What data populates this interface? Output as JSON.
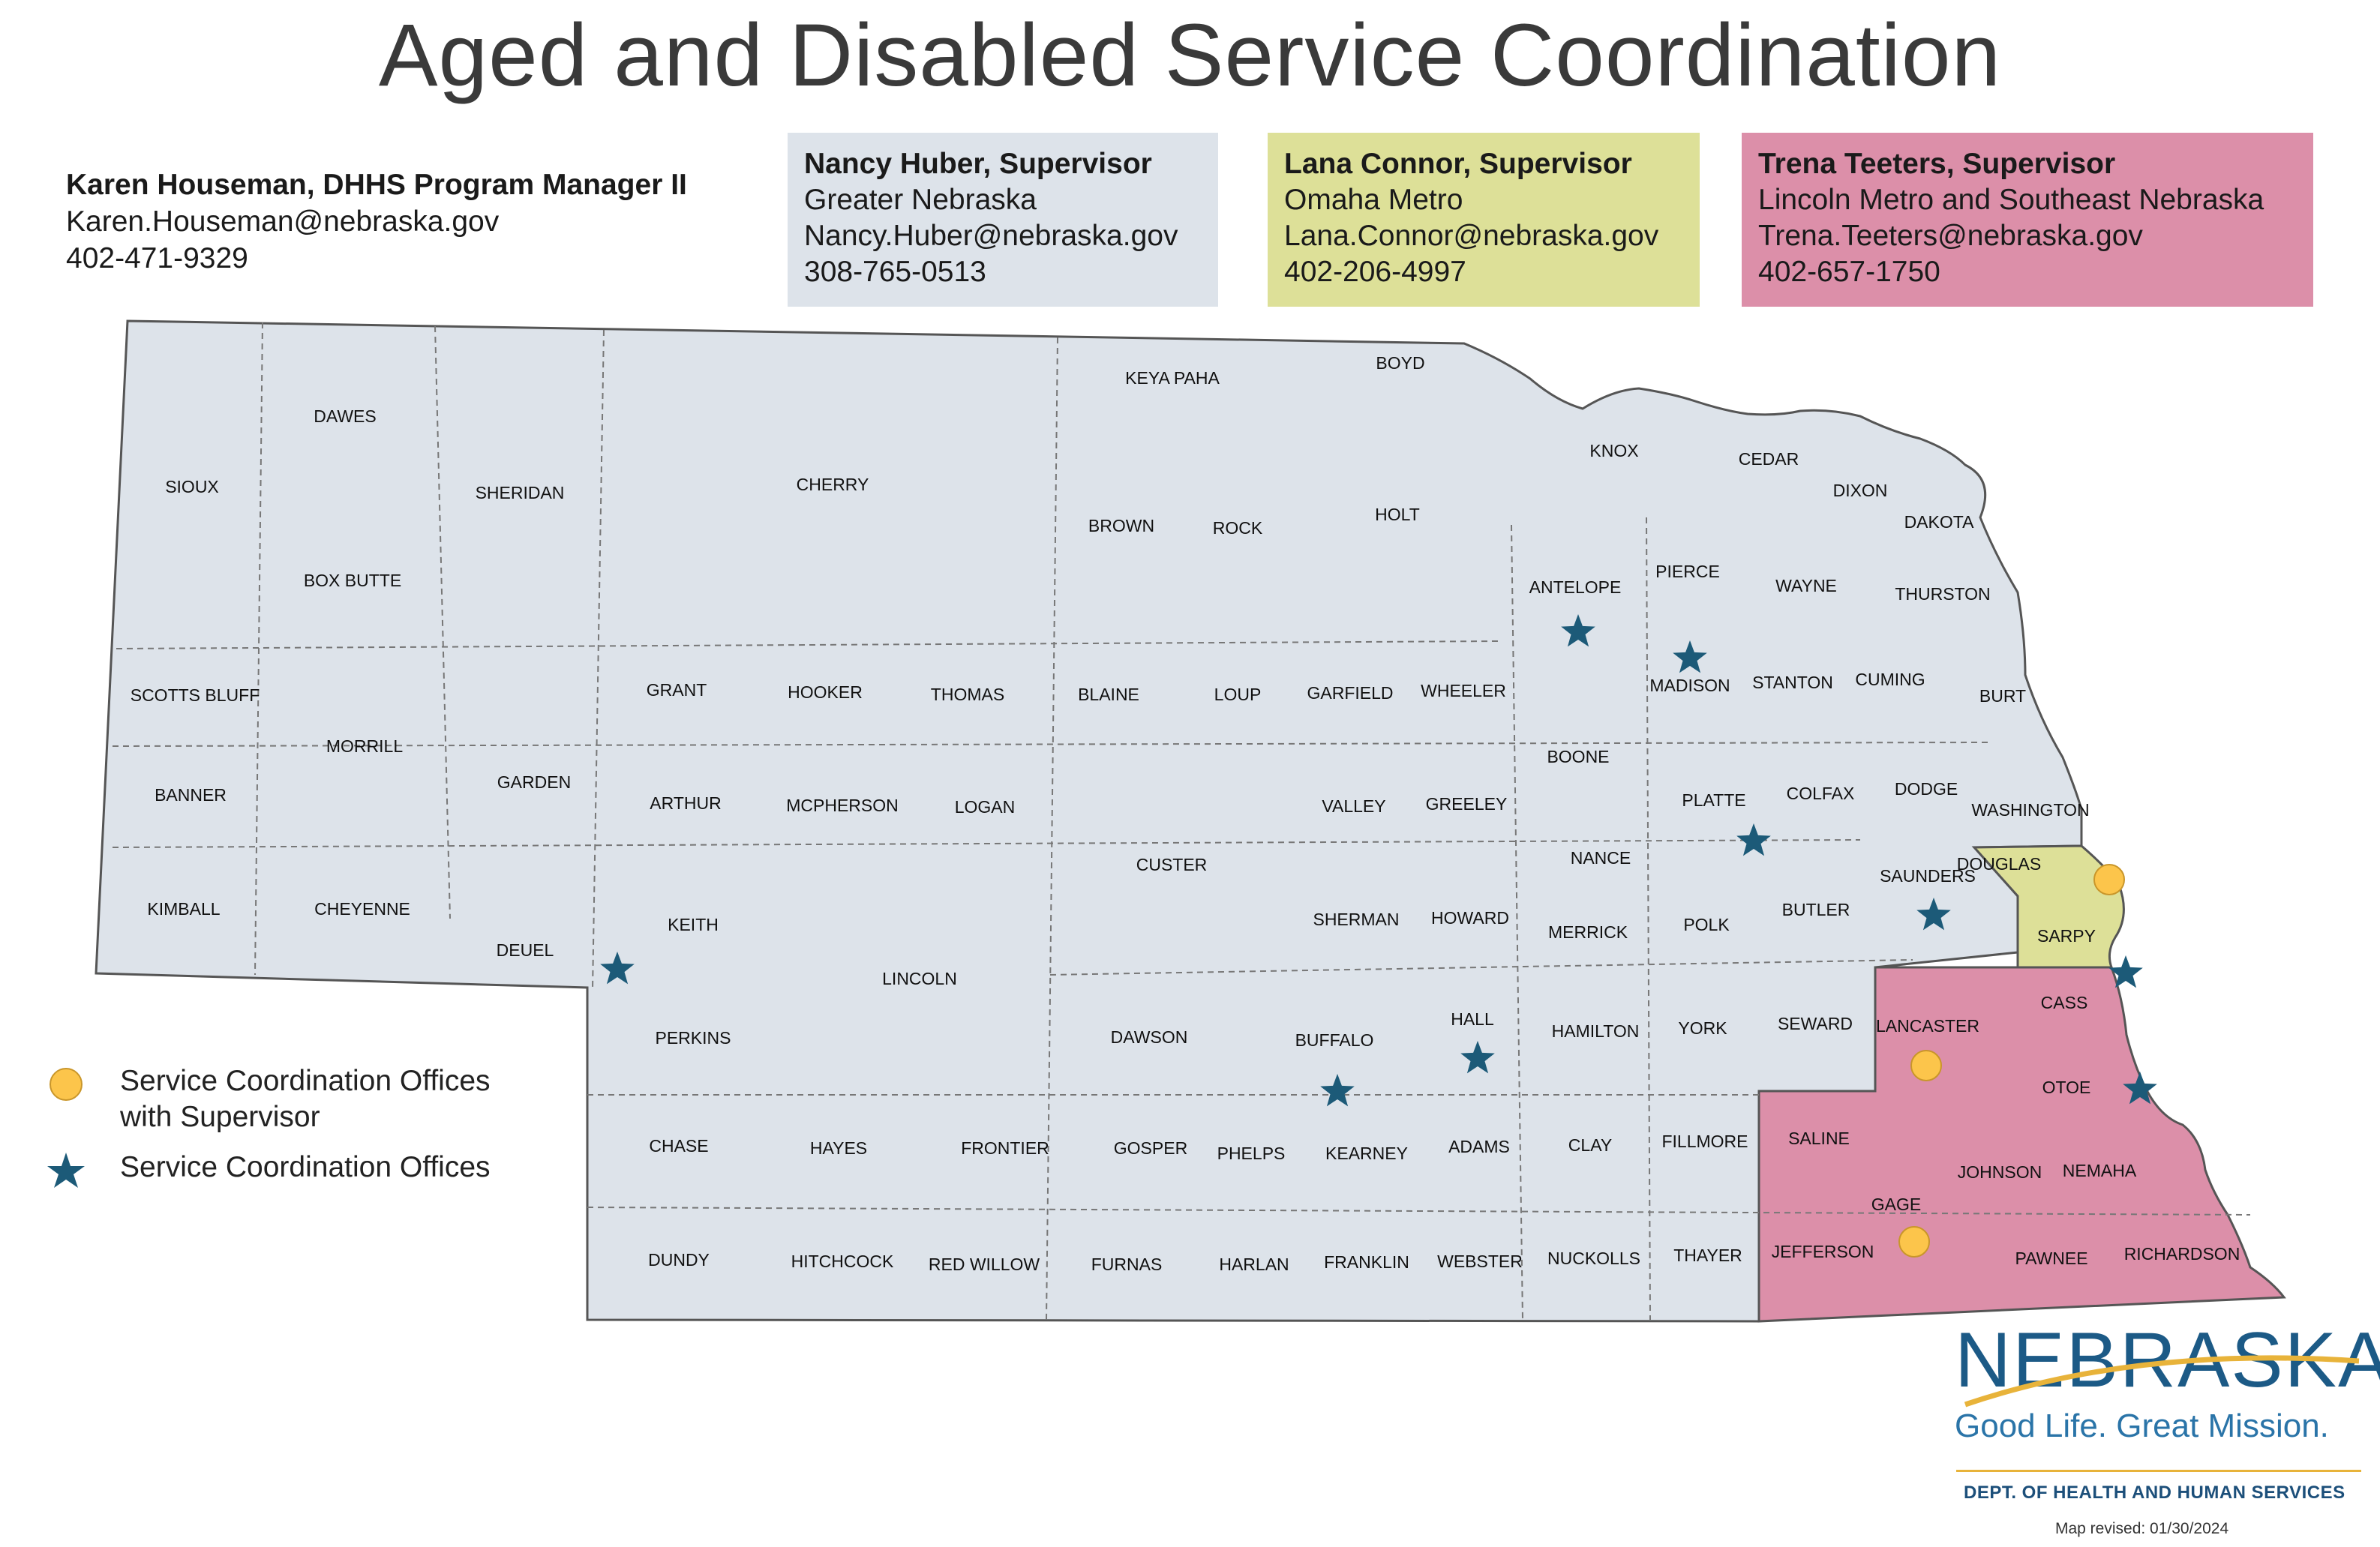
{
  "title": "Aged and Disabled Service Coordination",
  "manager": {
    "name": "Karen Houseman, DHHS Program Manager II",
    "email": "Karen.Houseman@nebraska.gov",
    "phone": "402-471-9329"
  },
  "supervisors": [
    {
      "name": "Nancy Huber, Supervisor",
      "region": "Greater Nebraska",
      "email": "Nancy.Huber@nebraska.gov",
      "phone": "308-765-0513",
      "color": "#dde3ea"
    },
    {
      "name": "Lana Connor, Supervisor",
      "region": "Omaha Metro",
      "email": "Lana.Connor@nebraska.gov",
      "phone": "402-206-4997",
      "color": "#dde098"
    },
    {
      "name": "Trena Teeters, Supervisor",
      "region": "Lincoln Metro and Southeast Nebraska",
      "email": "Trena.Teeters@nebraska.gov",
      "phone": "402-657-1750",
      "color": "#dc8fa9"
    }
  ],
  "counties": {
    "greater": [
      "SIOUX",
      "DAWES",
      "SHERIDAN",
      "CHERRY",
      "KEYA PAHA",
      "BOYD",
      "KNOX",
      "CEDAR",
      "DIXON",
      "DAKOTA",
      "BOX BUTTE",
      "BROWN",
      "ROCK",
      "HOLT",
      "ANTELOPE",
      "PIERCE",
      "WAYNE",
      "THURSTON",
      "SCOTTS BLUFF",
      "MORRILL",
      "GARDEN",
      "GRANT",
      "HOOKER",
      "THOMAS",
      "BLAINE",
      "LOUP",
      "GARFIELD",
      "WHEELER",
      "MADISON",
      "STANTON",
      "CUMING",
      "BURT",
      "BANNER",
      "ARTHUR",
      "MCPHERSON",
      "LOGAN",
      "VALLEY",
      "GREELEY",
      "BOONE",
      "PLATTE",
      "COLFAX",
      "DODGE",
      "WASHINGTON",
      "KIMBALL",
      "CHEYENNE",
      "DEUEL",
      "KEITH",
      "CUSTER",
      "SHERMAN",
      "HOWARD",
      "NANCE",
      "MERRICK",
      "POLK",
      "BUTLER",
      "SAUNDERS",
      "LINCOLN",
      "PERKINS",
      "DAWSON",
      "BUFFALO",
      "HALL",
      "HAMILTON",
      "YORK",
      "SEWARD",
      "CHASE",
      "HAYES",
      "FRONTIER",
      "GOSPER",
      "PHELPS",
      "KEARNEY",
      "ADAMS",
      "CLAY",
      "FILLMORE",
      "DUNDY",
      "HITCHCOCK",
      "RED WILLOW",
      "FURNAS",
      "HARLAN",
      "FRANKLIN",
      "WEBSTER",
      "NUCKOLLS",
      "THAYER"
    ],
    "omaha": [
      "DOUGLAS",
      "SARPY"
    ],
    "lincoln_se": [
      "LANCASTER",
      "CASS",
      "OTOE",
      "SALINE",
      "JOHNSON",
      "NEMAHA",
      "GAGE",
      "JEFFERSON",
      "PAWNEE",
      "RICHARDSON"
    ]
  },
  "offices_with_supervisor": [
    "DOUGLAS",
    "LANCASTER",
    "GAGE"
  ],
  "offices": [
    "KEITH",
    "BUFFALO",
    "HALL",
    "ANTELOPE",
    "MADISON",
    "PLATTE",
    "SAUNDERS",
    "SARPY",
    "OTOE"
  ],
  "legend": {
    "supervisor_office": "Service Coordination Offices\nwith Supervisor",
    "supervisor_office_line1": "Service Coordination Offices",
    "supervisor_office_line2": "with Supervisor",
    "office": "Service Coordination Offices"
  },
  "logo": {
    "wordmark": "NEBRASKA",
    "tagline": "Good Life. Great Mission.",
    "department": "DEPT. OF HEALTH AND HUMAN SERVICES",
    "revised": "Map revised: 01/30/2024"
  },
  "colors": {
    "greater": "#dde3ea",
    "omaha": "#dde098",
    "lincoln_se": "#dc8fa9",
    "supervisor_circle": "#fcc54b",
    "star": "#1c5a78",
    "border": "#555555"
  }
}
